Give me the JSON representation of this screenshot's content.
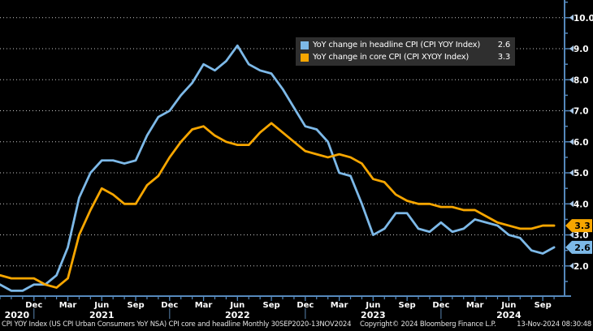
{
  "colors": {
    "background": "#000000",
    "axis": "#5588BB",
    "grid": "#C8C8C8",
    "tick_arrow": "#A8C8E8",
    "legend_bg": "#2F2F2F",
    "tick_text": "#FFFFFF",
    "badge_text": "#000000",
    "year_separator": "#4A6E92",
    "footer_text": "#E3E3E3",
    "headline_accent": "#7DB9E8",
    "core_accent": "#F7A600"
  },
  "chart_data": {
    "type": "line",
    "title": "",
    "xlabel": "",
    "ylabel": "",
    "x_unit": "month",
    "x_start": "Sep 2020",
    "x_end": "Oct 2024",
    "ylim": [
      1.0,
      10.57
    ],
    "grid": "dotted horizontal",
    "legend_position": "top-right",
    "y_ticks": [
      {
        "v": 2,
        "label": "2.0"
      },
      {
        "v": 3,
        "label": "3.0"
      },
      {
        "v": 4,
        "label": "4.0"
      },
      {
        "v": 5,
        "label": "5.0"
      },
      {
        "v": 6,
        "label": "6.0"
      },
      {
        "v": 7,
        "label": "7.0"
      },
      {
        "v": 8,
        "label": "8.0"
      },
      {
        "v": 9,
        "label": "9.0"
      },
      {
        "v": 10,
        "label": "10.0"
      }
    ],
    "x_ticks": [
      {
        "m": 3,
        "label": "Dec"
      },
      {
        "m": 6,
        "label": "Mar"
      },
      {
        "m": 9,
        "label": "Jun"
      },
      {
        "m": 12,
        "label": "Sep"
      },
      {
        "m": 15,
        "label": "Dec"
      },
      {
        "m": 18,
        "label": "Mar"
      },
      {
        "m": 21,
        "label": "Jun"
      },
      {
        "m": 24,
        "label": "Sep"
      },
      {
        "m": 27,
        "label": "Dec"
      },
      {
        "m": 30,
        "label": "Mar"
      },
      {
        "m": 33,
        "label": "Jun"
      },
      {
        "m": 36,
        "label": "Sep"
      },
      {
        "m": 39,
        "label": "Dec"
      },
      {
        "m": 42,
        "label": "Mar"
      },
      {
        "m": 45,
        "label": "Jun"
      },
      {
        "m": 48,
        "label": "Sep"
      }
    ],
    "year_labels": [
      {
        "m": 1.5,
        "label": "2020"
      },
      {
        "m": 9,
        "label": "2021"
      },
      {
        "m": 21,
        "label": "2022"
      },
      {
        "m": 33,
        "label": "2023"
      },
      {
        "m": 45,
        "label": "2024"
      }
    ],
    "year_separators_m": [
      3,
      15,
      27,
      39
    ],
    "series": [
      {
        "id": "headline",
        "legend_label": "YoY change in headline CPI (CPI YOY Index)",
        "last_value_label": "2.6",
        "color": "#7DB9E8",
        "values": [
          1.4,
          1.2,
          1.2,
          1.4,
          1.4,
          1.7,
          2.6,
          4.2,
          5.0,
          5.4,
          5.4,
          5.3,
          5.4,
          6.2,
          6.8,
          7.0,
          7.5,
          7.9,
          8.5,
          8.3,
          8.6,
          9.1,
          8.5,
          8.3,
          8.2,
          7.7,
          7.1,
          6.5,
          6.4,
          6.0,
          5.0,
          4.9,
          4.0,
          3.0,
          3.2,
          3.7,
          3.7,
          3.2,
          3.1,
          3.4,
          3.1,
          3.2,
          3.5,
          3.4,
          3.3,
          3.0,
          2.9,
          2.5,
          2.4,
          2.6
        ]
      },
      {
        "id": "core",
        "legend_label": "YoY change in core CPI (CPI XYOY Index)",
        "last_value_label": "3.3",
        "color": "#F7A600",
        "values": [
          1.7,
          1.6,
          1.6,
          1.6,
          1.4,
          1.3,
          1.6,
          3.0,
          3.8,
          4.5,
          4.3,
          4.0,
          4.0,
          4.6,
          4.9,
          5.5,
          6.0,
          6.4,
          6.5,
          6.2,
          6.0,
          5.9,
          5.9,
          6.3,
          6.6,
          6.3,
          6.0,
          5.7,
          5.6,
          5.5,
          5.6,
          5.5,
          5.3,
          4.8,
          4.7,
          4.3,
          4.1,
          4.0,
          4.0,
          3.9,
          3.9,
          3.8,
          3.8,
          3.6,
          3.4,
          3.3,
          3.2,
          3.2,
          3.3,
          3.3
        ]
      }
    ]
  },
  "footer": {
    "description": "CPI YOY Index (US CPI Urban Consumers YoY NSA) CPI core and headline  Monthly 30SEP2020-13NOV2024",
    "copyright": "Copyright© 2024 Bloomberg Finance L.P.",
    "timestamp": "13-Nov-2024 08:30:48"
  }
}
